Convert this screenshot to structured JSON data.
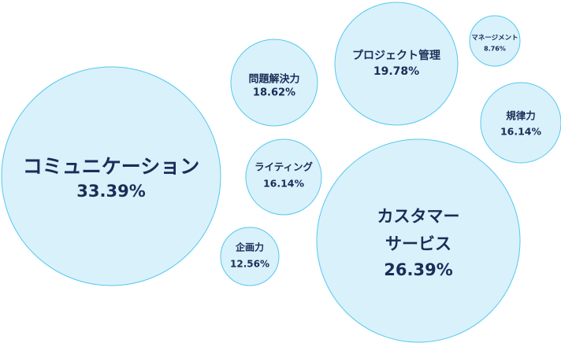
{
  "chart_data": {
    "type": "bubble",
    "title": "",
    "xlabel": "",
    "ylabel": "",
    "grid": false,
    "legend": "none",
    "colors": {
      "fill": "#d9f1fb",
      "stroke": "#55c8ee",
      "text": "#1b2c57"
    },
    "points": [
      {
        "label": "コミュニケーション",
        "value": 33.39,
        "value_text": "33.39%"
      },
      {
        "label": "カスタマーサービス",
        "value": 26.39,
        "value_text": "26.39%"
      },
      {
        "label": "プロジェクト管理",
        "value": 19.78,
        "value_text": "19.78%"
      },
      {
        "label": "問題解決力",
        "value": 18.62,
        "value_text": "18.62%"
      },
      {
        "label": "ライティング",
        "value": 16.14,
        "value_text": "16.14%"
      },
      {
        "label": "規律力",
        "value": 16.14,
        "value_text": "16.14%"
      },
      {
        "label": "企画力",
        "value": 12.56,
        "value_text": "12.56%"
      },
      {
        "label": "マネージメント",
        "value": 8.76,
        "value_text": "8.76%"
      }
    ]
  }
}
